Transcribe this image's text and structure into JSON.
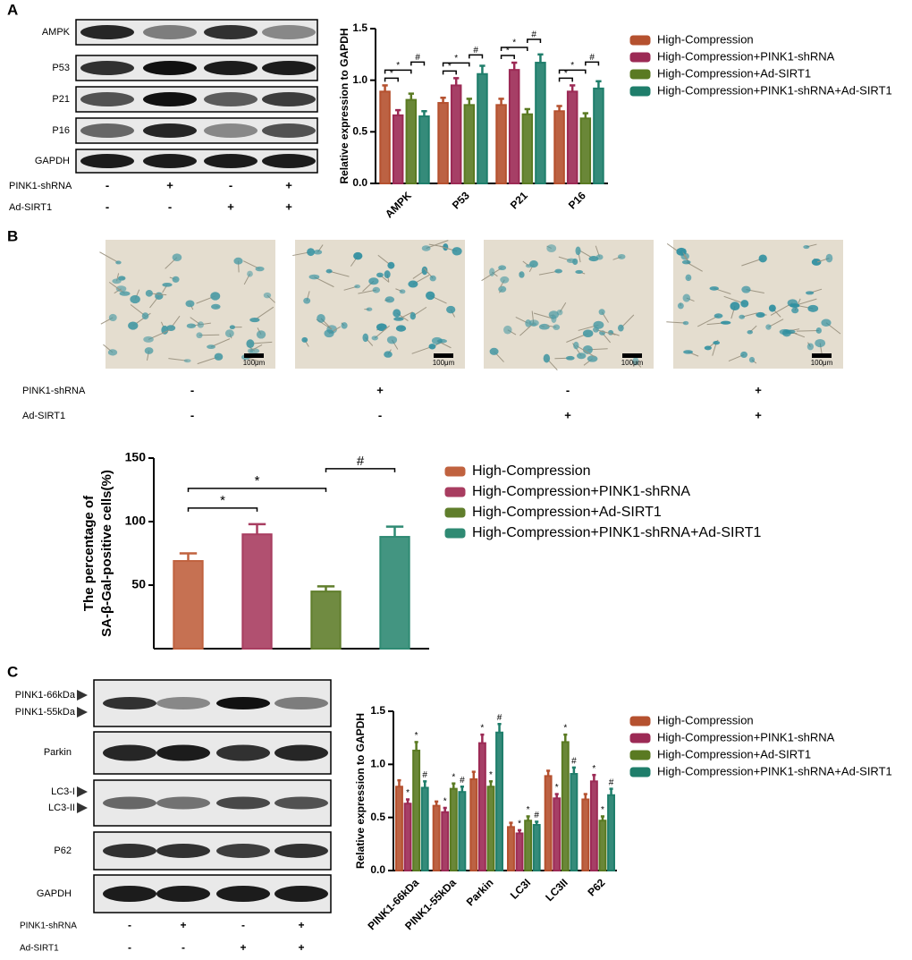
{
  "panel_letters": [
    "A",
    "B",
    "C"
  ],
  "blots_a": {
    "rows": [
      "AMPK",
      "P53",
      "P21",
      "P16",
      "GAPDH"
    ],
    "conditions": [
      {
        "label": "PINK1-shRNA",
        "signs": [
          "-",
          "+",
          "-",
          "+"
        ]
      },
      {
        "label": "Ad-SIRT1",
        "signs": [
          "-",
          "-",
          "+",
          "+"
        ]
      }
    ]
  },
  "micrographs": {
    "scale_labels": [
      "100μm",
      "100μm",
      "100μm",
      "100μm"
    ],
    "conditions": [
      {
        "label": "PINK1-shRNA",
        "signs": [
          "-",
          "+",
          "-",
          "+"
        ]
      },
      {
        "label": "Ad-SIRT1",
        "signs": [
          "-",
          "-",
          "+",
          "+"
        ]
      }
    ]
  },
  "blots_c": {
    "rows": [
      "PINK1-66kDa",
      "PINK1-55kDa",
      "Parkin",
      "LC3-I",
      "LC3-II",
      "P62",
      "GAPDH"
    ],
    "conditions": [
      {
        "label": "PINK1-shRNA",
        "signs": [
          "-",
          "+",
          "-",
          "+"
        ]
      },
      {
        "label": "Ad-SIRT1",
        "signs": [
          "-",
          "-",
          "+",
          "+"
        ]
      }
    ]
  },
  "chart_data": [
    {
      "type": "bar",
      "ylabel": "Relative expression to GAPDH",
      "categories": [
        "AMPK",
        "P53",
        "P21",
        "P16"
      ],
      "series": [
        {
          "name": "High-Compression",
          "color": "#b5512f",
          "values": [
            0.89,
            0.78,
            0.76,
            0.7
          ],
          "errors": [
            0.06,
            0.05,
            0.06,
            0.05
          ]
        },
        {
          "name": "High-Compression+PINK1-shRNA",
          "color": "#9c2a55",
          "values": [
            0.66,
            0.95,
            1.1,
            0.89
          ],
          "errors": [
            0.05,
            0.07,
            0.07,
            0.06
          ]
        },
        {
          "name": "High-Compression+Ad-SIRT1",
          "color": "#5a7a22",
          "values": [
            0.81,
            0.76,
            0.67,
            0.63
          ],
          "errors": [
            0.06,
            0.06,
            0.05,
            0.05
          ]
        },
        {
          "name": "High-Compression+PINK1-shRNA+Ad-SIRT1",
          "color": "#1f7e6b",
          "values": [
            0.65,
            1.06,
            1.17,
            0.92
          ],
          "errors": [
            0.05,
            0.08,
            0.08,
            0.07
          ]
        }
      ],
      "ylim": [
        0,
        1.5
      ],
      "yticks": [
        {
          "value": 0,
          "label": "0.0"
        },
        0.5,
        {
          "value": 1,
          "label": "1.0"
        },
        1.5
      ],
      "brackets": [
        {
          "text": "*",
          "pair": [
            0,
            1
          ]
        },
        {
          "text": "*",
          "pair": [
            0,
            2
          ]
        },
        {
          "text": "#",
          "pair": [
            2,
            3
          ]
        }
      ]
    },
    {
      "type": "bar",
      "ylabel": [
        "The percentage of",
        "SA-β-Gal-positive cells(%)"
      ],
      "categories": [
        null
      ],
      "series": [
        {
          "name": "High-Compression",
          "color": "#c0623f",
          "values": [
            69
          ],
          "errors": [
            6
          ]
        },
        {
          "name": "High-Compression+PINK1-shRNA",
          "color": "#a83d60",
          "values": [
            90
          ],
          "errors": [
            8
          ]
        },
        {
          "name": "High-Compression+Ad-SIRT1",
          "color": "#607e2c",
          "values": [
            45
          ],
          "errors": [
            4
          ]
        },
        {
          "name": "High-Compression+PINK1-shRNA+Ad-SIRT1",
          "color": "#2f8a73",
          "values": [
            88
          ],
          "errors": [
            8
          ]
        }
      ],
      "ylim": [
        0,
        150
      ],
      "yticks": [
        50,
        100,
        150
      ],
      "brackets": [
        {
          "text": "*",
          "pair": [
            0,
            1
          ]
        },
        {
          "text": "*",
          "pair": [
            0,
            2
          ]
        },
        {
          "text": "#",
          "pair": [
            2,
            3
          ]
        }
      ]
    },
    {
      "type": "bar",
      "ylabel": "Relative expression to GAPDH",
      "categories": [
        "PINK1-66kDa",
        "PINK1-55kDa",
        "Parkin",
        "LC3I",
        "LC3II",
        "P62"
      ],
      "series": [
        {
          "name": "High-Compression",
          "color": "#b5512f",
          "values": [
            0.79,
            0.61,
            0.86,
            0.41,
            0.89,
            0.67
          ],
          "errors": [
            0.06,
            0.04,
            0.07,
            0.04,
            0.05,
            0.05
          ]
        },
        {
          "name": "High-Compression+PINK1-shRNA",
          "marker": "*",
          "color": "#9c2a55",
          "values": [
            0.63,
            0.55,
            1.2,
            0.35,
            0.68,
            0.84
          ],
          "errors": [
            0.04,
            0.04,
            0.08,
            0.03,
            0.04,
            0.06
          ]
        },
        {
          "name": "High-Compression+Ad-SIRT1",
          "marker": "*",
          "color": "#5a7a22",
          "values": [
            1.13,
            0.77,
            0.79,
            0.47,
            1.21,
            0.47
          ],
          "errors": [
            0.08,
            0.05,
            0.05,
            0.04,
            0.07,
            0.04
          ]
        },
        {
          "name": "High-Compression+PINK1-shRNA+Ad-SIRT1",
          "marker": "#",
          "color": "#1f7e6b",
          "values": [
            0.78,
            0.74,
            1.3,
            0.43,
            0.91,
            0.71
          ],
          "errors": [
            0.06,
            0.05,
            0.08,
            0.03,
            0.06,
            0.06
          ]
        }
      ],
      "ylim": [
        0,
        1.5
      ],
      "yticks": [
        {
          "value": 0,
          "label": "0.0"
        },
        0.5,
        {
          "value": 1,
          "label": "1.0"
        },
        1.5
      ]
    }
  ]
}
